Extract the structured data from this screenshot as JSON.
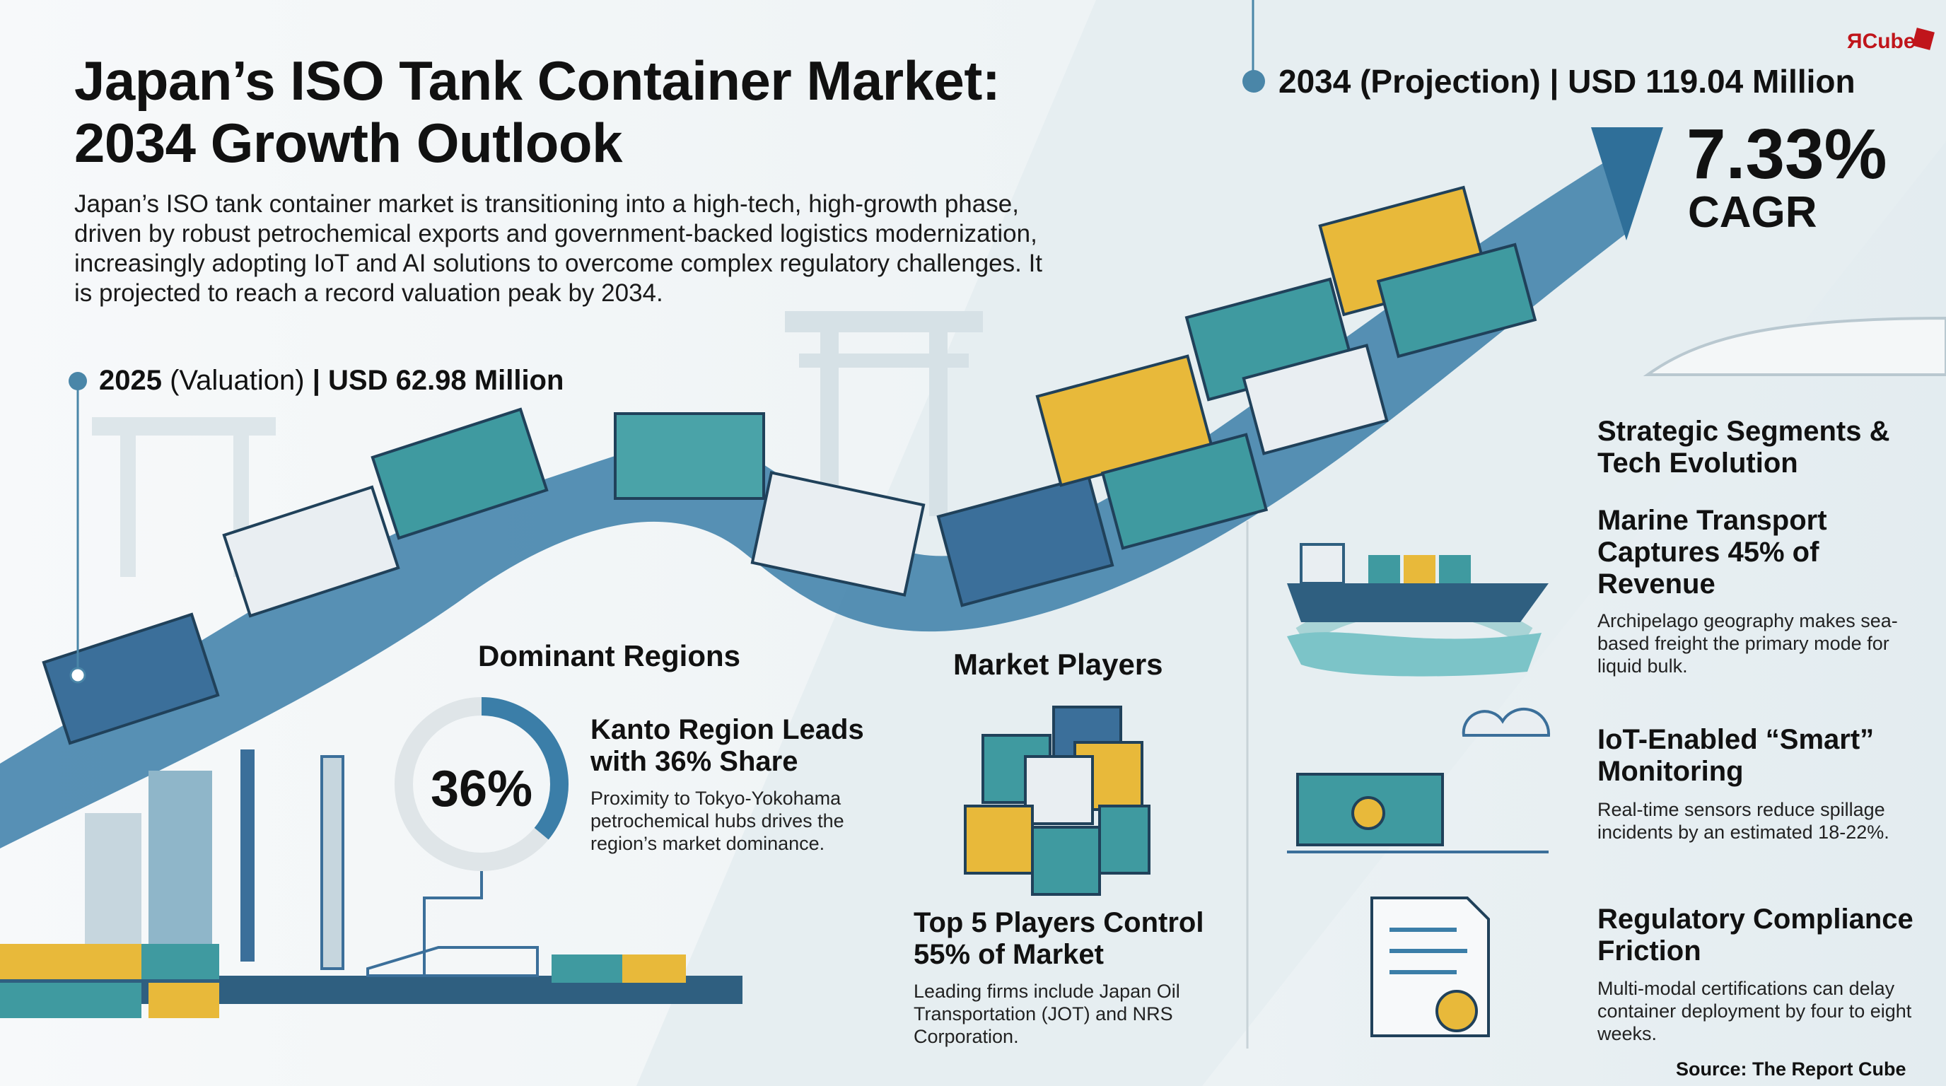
{
  "header": {
    "title_line1": "Japan’s ISO Tank Container Market:",
    "title_line2": "2034 Growth Outlook",
    "intro": "Japan’s ISO tank container market is transitioning into a high-tech, high-growth phase, driven by robust petrochemical exports and government-backed logistics modernization, increasingly adopting IoT and AI solutions to overcome complex regulatory challenges. It is projected to reach a record valuation peak by 2034."
  },
  "logo": {
    "text": "ЯCube",
    "color": "#c0151b"
  },
  "stats": {
    "start_year": "2025",
    "start_label": "(Valuation)",
    "start_value": "| USD 62.98 Million",
    "end_label": "2034 (Projection)",
    "end_value": "| USD 119.04 Million",
    "cagr": "7.33%",
    "cagr_label": "CAGR"
  },
  "regions": {
    "title": "Dominant Regions",
    "share": "36%",
    "share_fraction": 0.36,
    "headline": "Kanto Region Leads with 36% Share",
    "text": "Proximity to Tokyo-Yokohama petrochemical hubs drives the region’s market dominance."
  },
  "players": {
    "title": "Market Players",
    "headline": "Top 5 Players Control 55% of Market",
    "text": "Leading firms include Japan Oil Transportation (JOT) and NRS Corporation."
  },
  "segments": {
    "title": "Strategic Segments & Tech Evolution",
    "items": [
      {
        "headline": "Marine Transport Captures 45% of Revenue",
        "text": "Archipelago geography makes sea-based freight the primary mode for liquid bulk.",
        "icon": "cargo-ship-icon"
      },
      {
        "headline": "IoT-Enabled “Smart” Monitoring",
        "text": "Real-time sensors reduce spillage incidents by an estimated 18-22%.",
        "icon": "iot-container-icon"
      },
      {
        "headline": "Regulatory Compliance Friction",
        "text": "Multi-modal certifications can delay container deployment by four to eight weeks.",
        "icon": "certificate-icon"
      }
    ]
  },
  "source": "Source: The Report Cube",
  "colors": {
    "teal": "#3f9aa0",
    "blue": "#3b6f9a",
    "yellow": "#e8b93a",
    "road": "#3b7ea8",
    "accent": "#4a86a8"
  }
}
